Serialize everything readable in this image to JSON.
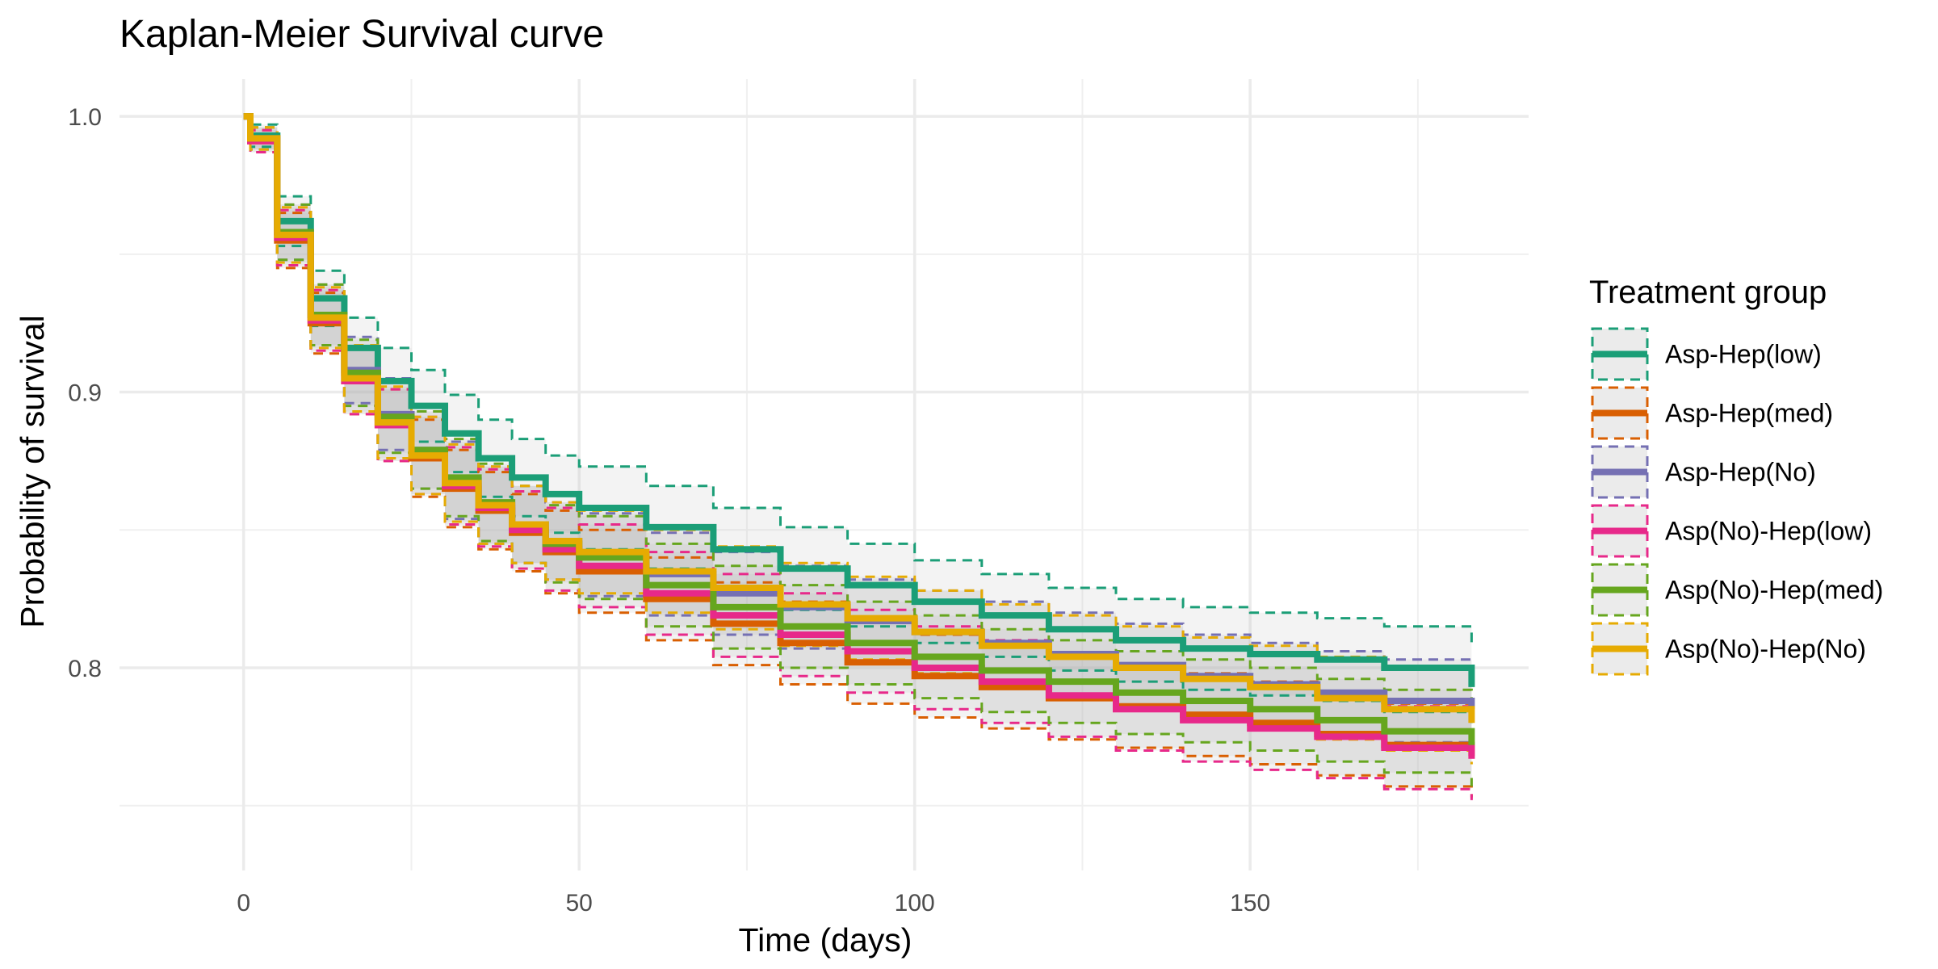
{
  "chart_data": {
    "type": "line",
    "title": "Kaplan-Meier Survival curve",
    "xlabel": "Time (days)",
    "ylabel": "Probability of survival",
    "xlim": [
      -18.5,
      191.5
    ],
    "ylim": [
      0.7265,
      1.0135
    ],
    "x_ticks": [
      0,
      50,
      100,
      150
    ],
    "x_minor_ticks": [
      25,
      75,
      125,
      175
    ],
    "y_ticks": [
      0.8,
      0.9,
      1.0
    ],
    "y_tick_labels": [
      "0.8",
      "0.9",
      "1.0"
    ],
    "y_minor_ticks": [
      0.75,
      0.85,
      0.95
    ],
    "grid": true,
    "legend": {
      "title": "Treatment group",
      "position": "right"
    },
    "ci_fill_color": "#b3b3b3",
    "series": [
      {
        "name": "Asp-Hep(low)",
        "color": "#1b9e77",
        "x": [
          0,
          1,
          5,
          10,
          15,
          20,
          25,
          30,
          35,
          40,
          45,
          50,
          60,
          70,
          80,
          90,
          100,
          110,
          120,
          130,
          140,
          150,
          160,
          170,
          183
        ],
        "y": [
          1.0,
          0.993,
          0.962,
          0.934,
          0.916,
          0.904,
          0.895,
          0.885,
          0.876,
          0.869,
          0.863,
          0.858,
          0.851,
          0.843,
          0.836,
          0.83,
          0.824,
          0.819,
          0.814,
          0.81,
          0.807,
          0.805,
          0.803,
          0.8,
          0.793
        ],
        "lower": [
          1.0,
          0.989,
          0.953,
          0.924,
          0.905,
          0.892,
          0.882,
          0.871,
          0.862,
          0.855,
          0.849,
          0.843,
          0.836,
          0.828,
          0.821,
          0.815,
          0.809,
          0.804,
          0.799,
          0.795,
          0.792,
          0.79,
          0.788,
          0.784,
          0.778
        ],
        "upper": [
          1.0,
          0.997,
          0.971,
          0.944,
          0.927,
          0.916,
          0.908,
          0.899,
          0.89,
          0.883,
          0.877,
          0.873,
          0.866,
          0.858,
          0.851,
          0.845,
          0.839,
          0.834,
          0.829,
          0.825,
          0.822,
          0.82,
          0.818,
          0.815,
          0.808
        ]
      },
      {
        "name": "Asp-Hep(med)",
        "color": "#d95f02",
        "x": [
          0,
          1,
          5,
          10,
          15,
          20,
          25,
          30,
          35,
          40,
          45,
          50,
          60,
          70,
          80,
          90,
          100,
          110,
          120,
          130,
          140,
          150,
          160,
          170,
          183
        ],
        "y": [
          1.0,
          0.991,
          0.955,
          0.925,
          0.904,
          0.888,
          0.876,
          0.865,
          0.857,
          0.849,
          0.842,
          0.835,
          0.825,
          0.816,
          0.809,
          0.802,
          0.797,
          0.793,
          0.789,
          0.786,
          0.783,
          0.78,
          0.776,
          0.772,
          0.768
        ],
        "lower": [
          1.0,
          0.987,
          0.945,
          0.914,
          0.892,
          0.875,
          0.862,
          0.851,
          0.843,
          0.835,
          0.827,
          0.82,
          0.81,
          0.801,
          0.794,
          0.787,
          0.782,
          0.778,
          0.774,
          0.771,
          0.768,
          0.765,
          0.761,
          0.757,
          0.753
        ],
        "upper": [
          1.0,
          0.995,
          0.965,
          0.936,
          0.916,
          0.901,
          0.89,
          0.879,
          0.871,
          0.863,
          0.857,
          0.85,
          0.84,
          0.831,
          0.824,
          0.817,
          0.812,
          0.808,
          0.804,
          0.801,
          0.798,
          0.795,
          0.791,
          0.787,
          0.783
        ]
      },
      {
        "name": "Asp-Hep(No)",
        "color": "#7570b3",
        "x": [
          0,
          1,
          5,
          10,
          15,
          20,
          25,
          30,
          35,
          40,
          45,
          50,
          60,
          70,
          80,
          90,
          100,
          110,
          120,
          130,
          140,
          150,
          160,
          170,
          183
        ],
        "y": [
          1.0,
          0.992,
          0.958,
          0.928,
          0.908,
          0.892,
          0.879,
          0.868,
          0.859,
          0.852,
          0.846,
          0.841,
          0.834,
          0.827,
          0.822,
          0.817,
          0.813,
          0.809,
          0.805,
          0.801,
          0.797,
          0.794,
          0.791,
          0.788,
          0.785
        ],
        "lower": [
          1.0,
          0.988,
          0.948,
          0.917,
          0.896,
          0.879,
          0.865,
          0.854,
          0.845,
          0.838,
          0.832,
          0.826,
          0.819,
          0.812,
          0.807,
          0.802,
          0.798,
          0.794,
          0.79,
          0.786,
          0.782,
          0.779,
          0.776,
          0.773,
          0.77
        ],
        "upper": [
          1.0,
          0.996,
          0.968,
          0.939,
          0.92,
          0.905,
          0.893,
          0.882,
          0.873,
          0.866,
          0.86,
          0.856,
          0.849,
          0.842,
          0.837,
          0.832,
          0.828,
          0.824,
          0.82,
          0.816,
          0.812,
          0.809,
          0.806,
          0.803,
          0.8
        ]
      },
      {
        "name": "Asp(No)-Hep(low)",
        "color": "#e7298a",
        "x": [
          0,
          1,
          5,
          10,
          15,
          20,
          25,
          30,
          35,
          40,
          45,
          50,
          60,
          70,
          80,
          90,
          100,
          110,
          120,
          130,
          140,
          150,
          160,
          170,
          183
        ],
        "y": [
          1.0,
          0.991,
          0.956,
          0.926,
          0.904,
          0.888,
          0.877,
          0.866,
          0.858,
          0.85,
          0.843,
          0.837,
          0.827,
          0.819,
          0.812,
          0.806,
          0.8,
          0.795,
          0.79,
          0.785,
          0.781,
          0.778,
          0.775,
          0.771,
          0.767
        ],
        "lower": [
          1.0,
          0.987,
          0.946,
          0.915,
          0.892,
          0.875,
          0.863,
          0.852,
          0.844,
          0.836,
          0.828,
          0.822,
          0.812,
          0.804,
          0.797,
          0.791,
          0.785,
          0.78,
          0.775,
          0.77,
          0.766,
          0.763,
          0.76,
          0.756,
          0.752
        ],
        "upper": [
          1.0,
          0.995,
          0.966,
          0.937,
          0.916,
          0.901,
          0.891,
          0.88,
          0.872,
          0.864,
          0.858,
          0.852,
          0.842,
          0.834,
          0.827,
          0.821,
          0.815,
          0.81,
          0.805,
          0.8,
          0.796,
          0.793,
          0.79,
          0.786,
          0.782
        ]
      },
      {
        "name": "Asp(No)-Hep(med)",
        "color": "#66a61e",
        "x": [
          0,
          1,
          5,
          10,
          15,
          20,
          25,
          30,
          35,
          40,
          45,
          50,
          60,
          70,
          80,
          90,
          100,
          110,
          120,
          130,
          140,
          150,
          160,
          170,
          183
        ],
        "y": [
          1.0,
          0.992,
          0.958,
          0.928,
          0.907,
          0.891,
          0.879,
          0.869,
          0.86,
          0.852,
          0.845,
          0.84,
          0.83,
          0.822,
          0.815,
          0.809,
          0.804,
          0.799,
          0.795,
          0.791,
          0.788,
          0.785,
          0.781,
          0.777,
          0.772
        ],
        "lower": [
          1.0,
          0.988,
          0.948,
          0.917,
          0.895,
          0.878,
          0.865,
          0.855,
          0.846,
          0.838,
          0.831,
          0.825,
          0.815,
          0.807,
          0.8,
          0.794,
          0.789,
          0.784,
          0.78,
          0.776,
          0.773,
          0.77,
          0.766,
          0.762,
          0.757
        ],
        "upper": [
          1.0,
          0.996,
          0.968,
          0.939,
          0.919,
          0.904,
          0.893,
          0.883,
          0.874,
          0.866,
          0.859,
          0.855,
          0.845,
          0.837,
          0.83,
          0.824,
          0.819,
          0.814,
          0.81,
          0.806,
          0.803,
          0.8,
          0.796,
          0.792,
          0.787
        ]
      },
      {
        "name": "Asp(No)-Hep(No)",
        "color": "#e6ab02",
        "x": [
          0,
          1,
          5,
          10,
          15,
          20,
          25,
          30,
          35,
          40,
          45,
          50,
          60,
          70,
          80,
          90,
          100,
          110,
          120,
          130,
          140,
          150,
          160,
          170,
          183
        ],
        "y": [
          1.0,
          0.992,
          0.957,
          0.927,
          0.905,
          0.889,
          0.877,
          0.867,
          0.859,
          0.852,
          0.846,
          0.842,
          0.835,
          0.829,
          0.823,
          0.818,
          0.813,
          0.808,
          0.804,
          0.8,
          0.796,
          0.793,
          0.789,
          0.785,
          0.78
        ],
        "lower": [
          1.0,
          0.988,
          0.947,
          0.916,
          0.893,
          0.876,
          0.863,
          0.853,
          0.845,
          0.838,
          0.832,
          0.827,
          0.82,
          0.814,
          0.808,
          0.803,
          0.798,
          0.793,
          0.789,
          0.785,
          0.781,
          0.778,
          0.774,
          0.77,
          0.765
        ],
        "upper": [
          1.0,
          0.996,
          0.967,
          0.938,
          0.917,
          0.902,
          0.891,
          0.881,
          0.873,
          0.866,
          0.86,
          0.857,
          0.85,
          0.844,
          0.838,
          0.833,
          0.828,
          0.823,
          0.819,
          0.815,
          0.811,
          0.808,
          0.804,
          0.8,
          0.795
        ]
      }
    ]
  }
}
